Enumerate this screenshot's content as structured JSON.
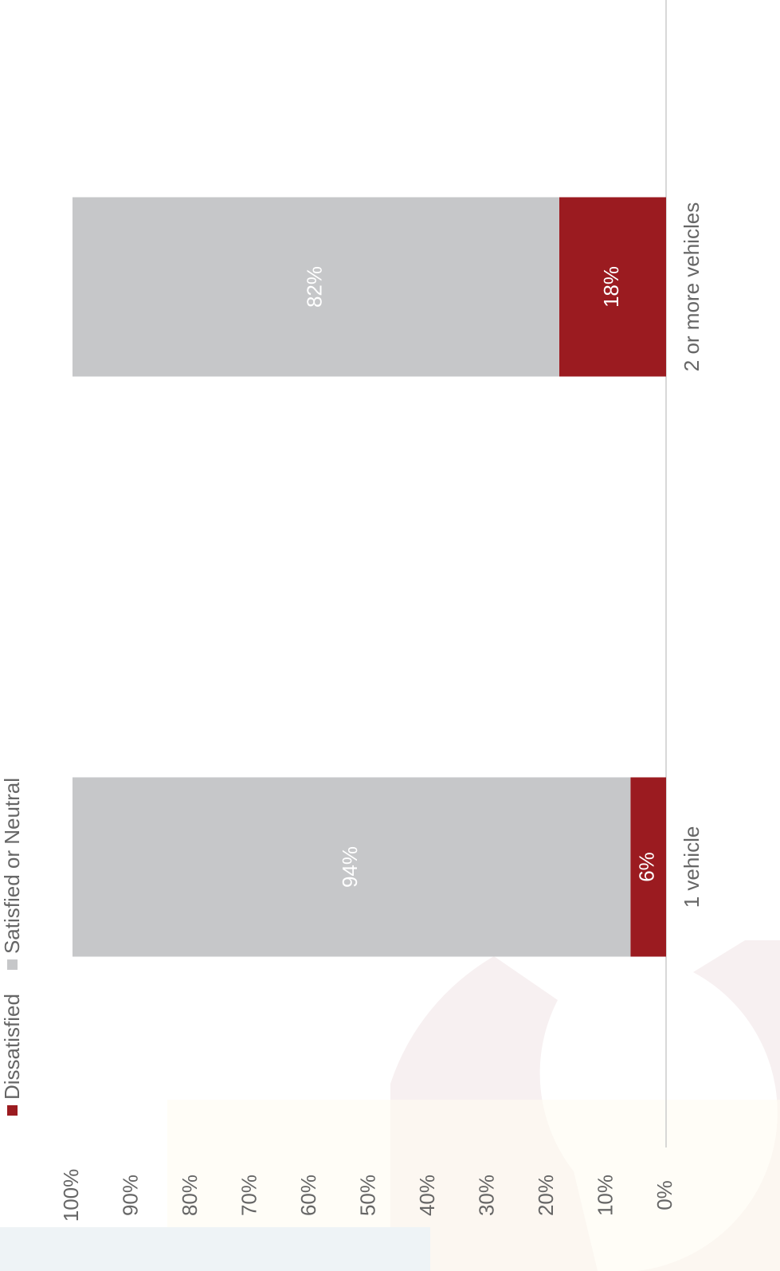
{
  "chart_data": {
    "type": "stacked_bar",
    "categories": [
      "1 vehicle",
      "2 or more vehicles"
    ],
    "series": [
      {
        "name": "Dissatisfied",
        "color": "#9b1b20",
        "values": [
          6,
          18
        ],
        "value_labels": [
          "6%",
          "18%"
        ]
      },
      {
        "name": "Satisfied or Neutral",
        "color": "#c6c7c9",
        "values": [
          94,
          82
        ],
        "value_labels": [
          "94%",
          "82%"
        ]
      }
    ],
    "ylim": [
      0,
      100
    ],
    "yticks": [
      {
        "value": 0,
        "label": "0%"
      },
      {
        "value": 10,
        "label": "10%"
      },
      {
        "value": 20,
        "label": "20%"
      },
      {
        "value": 30,
        "label": "30%"
      },
      {
        "value": 40,
        "label": "40%"
      },
      {
        "value": 50,
        "label": "50%"
      },
      {
        "value": 60,
        "label": "60%"
      },
      {
        "value": 70,
        "label": "70%"
      },
      {
        "value": 80,
        "label": "80%"
      },
      {
        "value": 90,
        "label": "90%"
      },
      {
        "value": 100,
        "label": "100%"
      }
    ],
    "grid": false,
    "legend": "top-left"
  }
}
